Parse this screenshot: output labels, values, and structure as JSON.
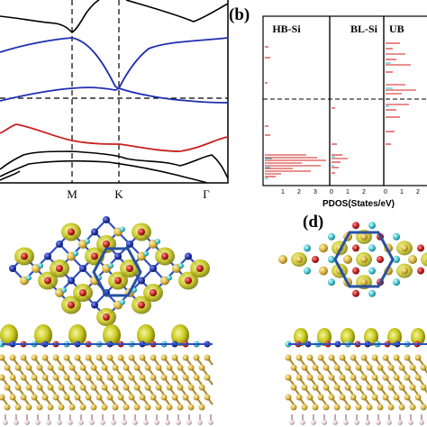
{
  "panels": {
    "a": {
      "tick_labels": [
        "M",
        "K",
        "Γ"
      ]
    },
    "b": {
      "label": "(b)",
      "columns": [
        "HB-Si",
        "BL-Si",
        "UB"
      ],
      "x_ticks": [
        "1",
        "2",
        "3",
        "0",
        "1",
        "2",
        "0",
        "1",
        "2"
      ],
      "x_label": "PDOS(States/eV)"
    },
    "d": {
      "label": "(d)"
    }
  },
  "colors": {
    "band_blue": "#1f2fb0",
    "band_red": "#c8201e",
    "band_black": "#000000",
    "pdos_red": "#d42020",
    "pdos_cyan": "#20b8c8",
    "isosurface": "#c8c81e",
    "si_atom": "#d4b040",
    "n_atom": "#2030a0",
    "b_atom": "#40c0c8",
    "o_atom": "#c02020",
    "h_atom": "#e0c8d0",
    "cell_line": "#2850a0"
  },
  "chart_data": {
    "type": "line",
    "x_ticks": [
      "M",
      "K",
      "Γ"
    ],
    "fermi_level": "dashed horizontal line",
    "series_colors": [
      "black",
      "blue",
      "red"
    ]
  }
}
